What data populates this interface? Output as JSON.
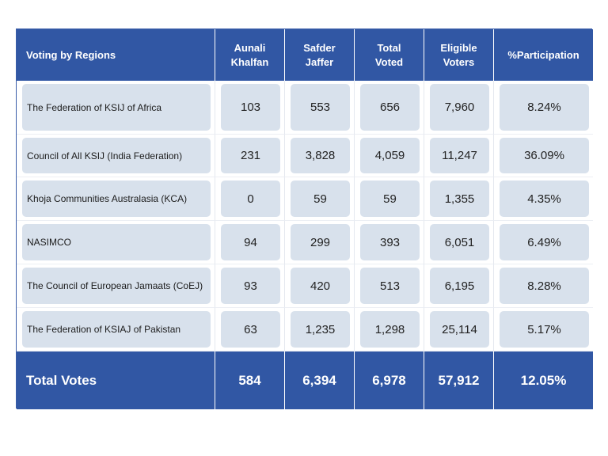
{
  "chart_data": {
    "type": "table",
    "columns": [
      "Voting by Regions",
      "Aunali\nKhalfan",
      "Safder\nJaffer",
      "Total\nVoted",
      "Eligible\nVoters",
      "%Participation"
    ],
    "rows": [
      [
        "The Federation of KSIJ of Africa",
        "103",
        "553",
        "656",
        "7,960",
        "8.24%"
      ],
      [
        "Council of All KSIJ (India Federation)",
        "231",
        "3,828",
        "4,059",
        "11,247",
        "36.09%"
      ],
      [
        "Khoja Communities Australasia (KCA)",
        "0",
        "59",
        "59",
        "1,355",
        "4.35%"
      ],
      [
        "NASIMCO",
        "94",
        "299",
        "393",
        "6,051",
        "6.49%"
      ],
      [
        "The Council of European Jamaats (CoEJ)",
        "93",
        "420",
        "513",
        "6,195",
        "8.28%"
      ],
      [
        "The Federation of KSIAJ of Pakistan",
        "63",
        "1,235",
        "1,298",
        "25,114",
        "5.17%"
      ]
    ],
    "totals": [
      "Total Votes",
      "584",
      "6,394",
      "6,978",
      "57,912",
      "12.05%"
    ]
  },
  "colors": {
    "header_bg": "#3157a4",
    "header_text": "#ffffff",
    "cell_fill": "#d8e1ec"
  }
}
